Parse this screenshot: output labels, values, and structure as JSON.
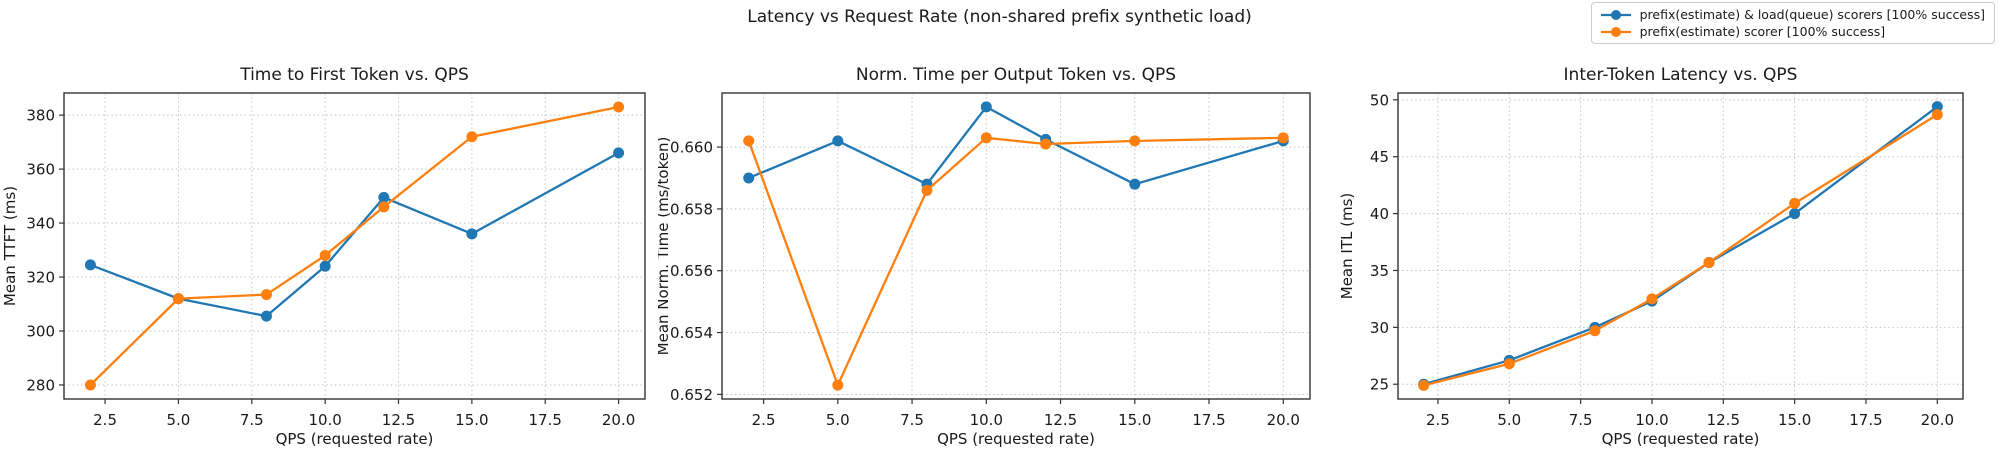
{
  "figure": {
    "title": "Latency vs Request Rate (non-shared prefix synthetic load)"
  },
  "legend": {
    "position": "figure-top-right",
    "items": [
      {
        "label": "prefix(estimate) & load(queue) scorers [100% success]",
        "color": "#1f77b4"
      },
      {
        "label": "prefix(estimate) scorer [100% success]",
        "color": "#ff7f0e"
      }
    ]
  },
  "chart_data": [
    {
      "type": "line",
      "title": "Time to First Token vs. QPS",
      "xlabel": "QPS (requested rate)",
      "ylabel": "Mean TTFT (ms)",
      "x": [
        2,
        5,
        8,
        10,
        12,
        15,
        20
      ],
      "series": [
        {
          "name": "prefix(estimate) & load(queue) scorers [100% success]",
          "color": "#1f77b4",
          "values": [
            324.5,
            312.0,
            305.5,
            324.0,
            349.5,
            336.0,
            366.0
          ]
        },
        {
          "name": "prefix(estimate) scorer [100% success]",
          "color": "#ff7f0e",
          "values": [
            280.0,
            312.0,
            313.5,
            328.0,
            346.0,
            372.0,
            383.0
          ]
        }
      ],
      "xlim": [
        1.1,
        20.9
      ],
      "ylim": [
        274.8,
        388.2
      ],
      "xticks": [
        2.5,
        5.0,
        7.5,
        10.0,
        12.5,
        15.0,
        17.5,
        20.0
      ],
      "x_tick_labels": [
        "2.5",
        "5.0",
        "7.5",
        "10.0",
        "12.5",
        "15.0",
        "17.5",
        "20.0"
      ],
      "yticks": [
        280,
        300,
        320,
        340,
        360,
        380
      ],
      "y_tick_labels": [
        "280",
        "300",
        "320",
        "340",
        "360",
        "380"
      ],
      "grid": true
    },
    {
      "type": "line",
      "title": "Norm. Time per Output Token vs. QPS",
      "xlabel": "QPS (requested rate)",
      "ylabel": "Mean Norm. Time (ms/token)",
      "x": [
        2,
        5,
        8,
        10,
        12,
        15,
        20
      ],
      "series": [
        {
          "name": "prefix(estimate) & load(queue) scorers [100% success]",
          "color": "#1f77b4",
          "values": [
            0.659,
            0.6602,
            0.6588,
            0.6613,
            0.66025,
            0.6588,
            0.6602
          ]
        },
        {
          "name": "prefix(estimate) scorer [100% success]",
          "color": "#ff7f0e",
          "values": [
            0.6602,
            0.6523,
            0.6586,
            0.6603,
            0.6601,
            0.6602,
            0.6603
          ]
        }
      ],
      "xlim": [
        1.1,
        20.9
      ],
      "ylim": [
        0.65185,
        0.66175
      ],
      "xticks": [
        2.5,
        5.0,
        7.5,
        10.0,
        12.5,
        15.0,
        17.5,
        20.0
      ],
      "x_tick_labels": [
        "2.5",
        "5.0",
        "7.5",
        "10.0",
        "12.5",
        "15.0",
        "17.5",
        "20.0"
      ],
      "yticks": [
        0.652,
        0.654,
        0.656,
        0.658,
        0.66
      ],
      "y_tick_labels": [
        "0.652",
        "0.654",
        "0.656",
        "0.658",
        "0.660"
      ],
      "grid": true
    },
    {
      "type": "line",
      "title": "Inter-Token Latency vs. QPS",
      "xlabel": "QPS (requested rate)",
      "ylabel": "Mean ITL (ms)",
      "x": [
        2,
        5,
        8,
        10,
        12,
        15,
        20
      ],
      "series": [
        {
          "name": "prefix(estimate) & load(queue) scorers [100% success]",
          "color": "#1f77b4",
          "values": [
            25.0,
            27.1,
            30.0,
            32.3,
            35.7,
            40.0,
            49.4
          ]
        },
        {
          "name": "prefix(estimate) scorer [100% success]",
          "color": "#ff7f0e",
          "values": [
            24.9,
            26.8,
            29.7,
            32.5,
            35.7,
            40.9,
            48.7
          ]
        }
      ],
      "xlim": [
        1.1,
        20.9
      ],
      "ylim": [
        23.7,
        50.6
      ],
      "xticks": [
        2.5,
        5.0,
        7.5,
        10.0,
        12.5,
        15.0,
        17.5,
        20.0
      ],
      "x_tick_labels": [
        "2.5",
        "5.0",
        "7.5",
        "10.0",
        "12.5",
        "15.0",
        "17.5",
        "20.0"
      ],
      "yticks": [
        25,
        30,
        35,
        40,
        45,
        50
      ],
      "y_tick_labels": [
        "25",
        "30",
        "35",
        "40",
        "45",
        "50"
      ],
      "grid": true
    }
  ]
}
